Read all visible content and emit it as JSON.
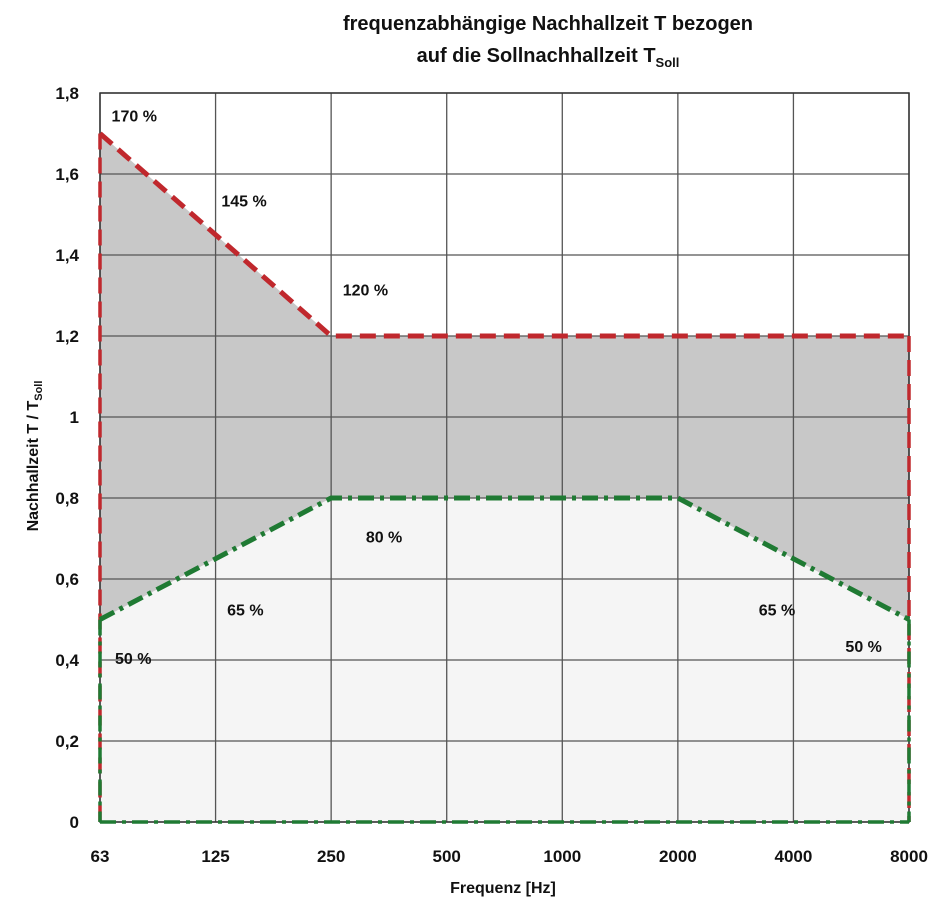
{
  "chart_data": {
    "type": "area",
    "title_line1": "frequenzabhängige Nachhallzeit T bezogen",
    "title_line2_prefix": "auf die Sollnachhallzeit T",
    "title_line2_sub": "Soll",
    "xlabel": "Frequenz [Hz]",
    "ylabel_prefix": "Nachhallzeit  T / T",
    "ylabel_sub": "Soll",
    "x_categories": [
      "63",
      "125",
      "250",
      "500",
      "1000",
      "2000",
      "4000",
      "8000"
    ],
    "y_ticks": [
      "0",
      "0,2",
      "0,4",
      "0,6",
      "0,8",
      "1",
      "1,2",
      "1,4",
      "1,6",
      "1,8"
    ],
    "ylim": [
      0,
      1.8
    ],
    "grid": true,
    "series": [
      {
        "role": "upper limit",
        "color": "#c0282d",
        "style": "dashed",
        "points": [
          [
            0,
            1.7
          ],
          [
            2,
            1.2
          ],
          [
            7,
            1.2
          ]
        ]
      },
      {
        "role": "lower limit",
        "color": "#1f7a33",
        "style": "dash-dot",
        "points": [
          [
            0,
            0.5
          ],
          [
            2,
            0.8
          ],
          [
            5,
            0.8
          ],
          [
            7,
            0.5
          ]
        ]
      }
    ],
    "fill_colors": {
      "tolerance_band": "#c8c8c8",
      "below_lower": "#f5f5f5"
    },
    "annotations": [
      {
        "text": "170 %",
        "x": 0.1,
        "y": 1.73
      },
      {
        "text": "145 %",
        "x": 1.05,
        "y": 1.52
      },
      {
        "text": "120 %",
        "x": 2.1,
        "y": 1.3
      },
      {
        "text": "80 %",
        "x": 2.3,
        "y": 0.69
      },
      {
        "text": "65 %",
        "x": 1.1,
        "y": 0.51
      },
      {
        "text": "50 %",
        "x": 0.13,
        "y": 0.39
      },
      {
        "text": "65 %",
        "x": 5.7,
        "y": 0.51
      },
      {
        "text": "50 %",
        "x": 6.45,
        "y": 0.42
      }
    ]
  }
}
